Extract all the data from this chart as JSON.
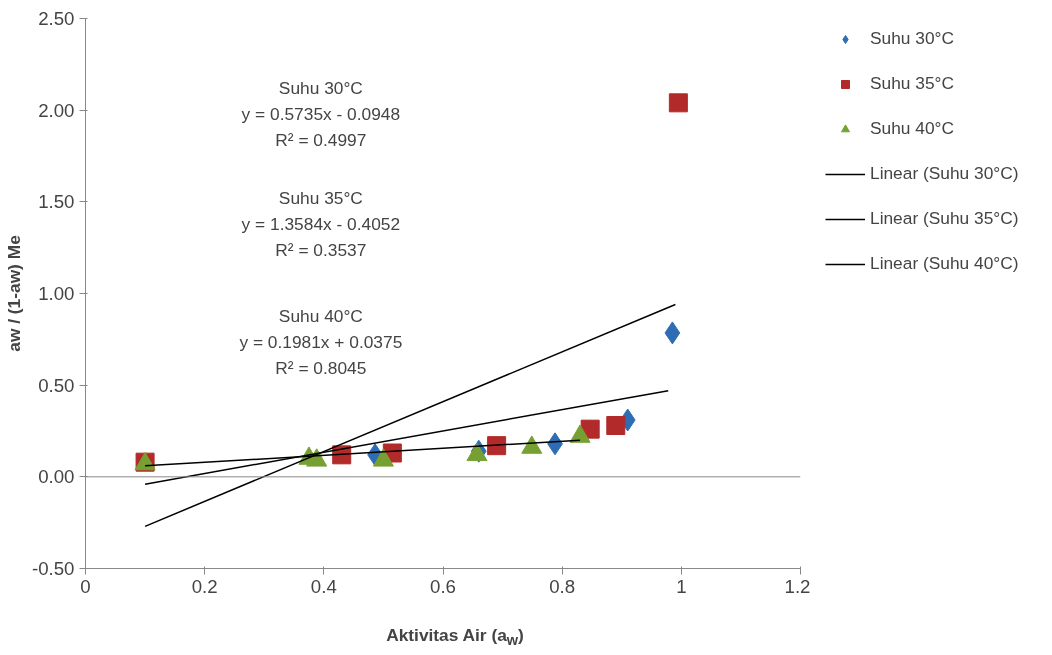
{
  "chart_data": {
    "type": "scatter",
    "xlabel": "Aktivitas Air (a$_{w}$)",
    "ylabel": "aw / (1-aw) Me",
    "xlim": [
      0,
      1.2
    ],
    "xticks": [
      0,
      0.2,
      0.4,
      0.6,
      0.8,
      1,
      1.2
    ],
    "ylim": [
      -0.5,
      2.5
    ],
    "yticks": [
      {
        "value": -0.5,
        "label": "-0.50"
      },
      {
        "value": 0,
        "label": "0.00"
      },
      {
        "value": 0.5,
        "label": "0.50"
      },
      {
        "value": 1,
        "label": "1.00"
      },
      {
        "value": 1.5,
        "label": "1.50"
      },
      {
        "value": 2,
        "label": "2.00"
      },
      {
        "value": 2.5,
        "label": "2.50"
      }
    ],
    "grid": false,
    "legend": "right",
    "ref_lines": [
      {
        "axis": "y",
        "value": 0,
        "color": "#888888"
      }
    ],
    "series": [
      {
        "name": "Suhu 30°C",
        "marker": "diamond",
        "color": "#2e6db4",
        "x": [
          0.486,
          0.66,
          0.788,
          0.91,
          0.985
        ],
        "values": [
          0.12,
          0.14,
          0.18,
          0.31,
          0.785
        ]
      },
      {
        "name": "Suhu 35°C",
        "marker": "square",
        "color": "#b22a2a",
        "x": [
          0.1,
          0.43,
          0.515,
          0.69,
          0.847,
          0.89,
          0.995
        ],
        "values": [
          0.08,
          0.12,
          0.13,
          0.17,
          0.26,
          0.28,
          2.04
        ]
      },
      {
        "name": "Suhu 40°C",
        "marker": "triangle",
        "color": "#77a033",
        "x": [
          0.1,
          0.375,
          0.388,
          0.5,
          0.657,
          0.749,
          0.83
        ],
        "values": [
          0.07,
          0.1,
          0.09,
          0.09,
          0.12,
          0.16,
          0.22
        ]
      },
      {
        "name": "Linear (Suhu 30°C)",
        "type": "line",
        "color": "#000000",
        "x": [
          0.1,
          0.978
        ],
        "values": [
          -0.04,
          0.47
        ]
      },
      {
        "name": "Linear (Suhu 35°C)",
        "type": "line",
        "color": "#000000",
        "x": [
          0.1,
          0.99
        ],
        "values": [
          -0.27,
          0.94
        ]
      },
      {
        "name": "Linear (Suhu 40°C)",
        "type": "line",
        "color": "#000000",
        "x": [
          0.1,
          0.83
        ],
        "values": [
          0.06,
          0.2
        ]
      }
    ],
    "annotations": [
      "Suhu 30°C",
      "y = 0.5735x - 0.0948",
      "R² = 0.4997",
      "Suhu 35°C",
      "y = 1.3584x - 0.4052",
      "R² = 0.3537",
      "Suhu 40°C",
      "y = 0.1981x + 0.0375",
      "R² = 0.8045"
    ]
  }
}
